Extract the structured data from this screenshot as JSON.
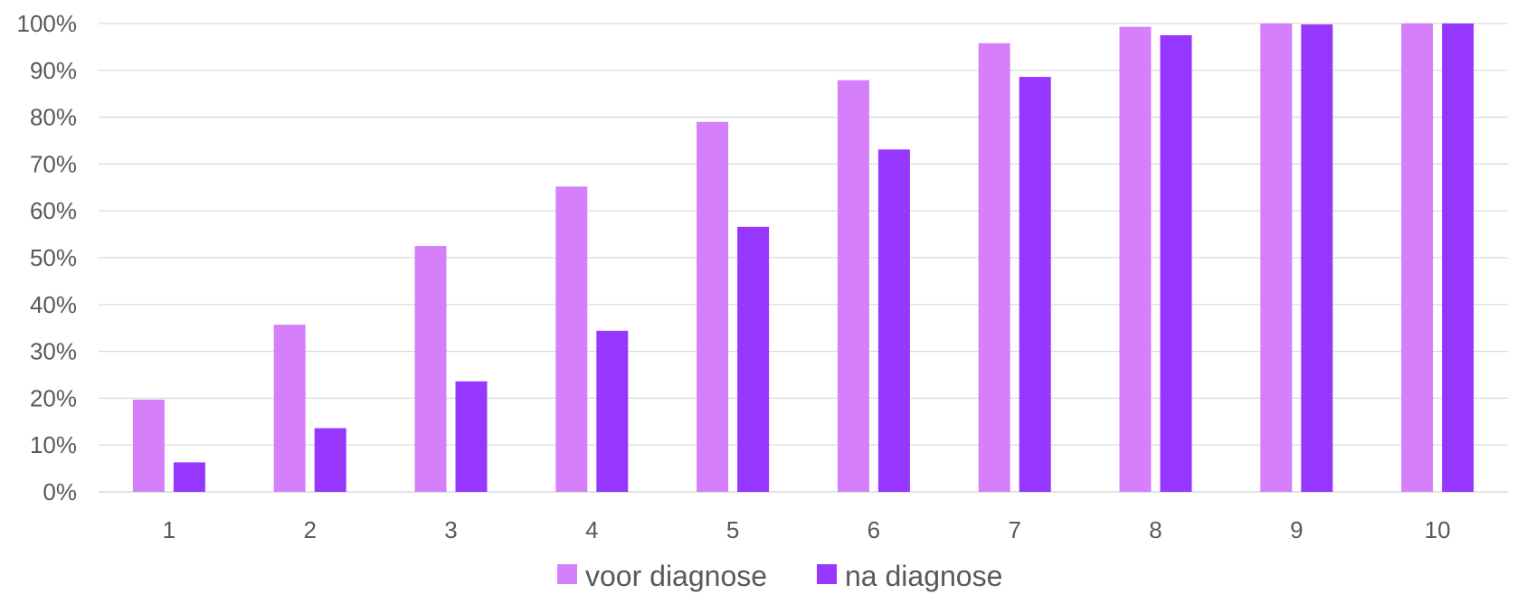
{
  "chart_data": {
    "type": "bar",
    "categories": [
      "1",
      "2",
      "3",
      "4",
      "5",
      "6",
      "7",
      "8",
      "9",
      "10"
    ],
    "series": [
      {
        "name": "voor diagnose",
        "color": "#D580FA",
        "values": [
          0.197,
          0.357,
          0.525,
          0.652,
          0.79,
          0.879,
          0.958,
          0.993,
          1.0,
          1.0
        ]
      },
      {
        "name": "na diagnose",
        "color": "#9537FF",
        "values": [
          0.063,
          0.136,
          0.236,
          0.344,
          0.566,
          0.731,
          0.886,
          0.975,
          0.998,
          1.0
        ]
      }
    ],
    "ylim": [
      0,
      1
    ],
    "yticks": [
      0,
      0.1,
      0.2,
      0.3,
      0.4,
      0.5,
      0.6,
      0.7,
      0.8,
      0.9,
      1.0
    ],
    "ytick_labels": [
      "0%",
      "10%",
      "20%",
      "30%",
      "40%",
      "50%",
      "60%",
      "70%",
      "80%",
      "90%",
      "100%"
    ],
    "grid": true,
    "legend_position": "bottom",
    "grid_color": "#D9D9D9",
    "text_color": "#595959"
  }
}
